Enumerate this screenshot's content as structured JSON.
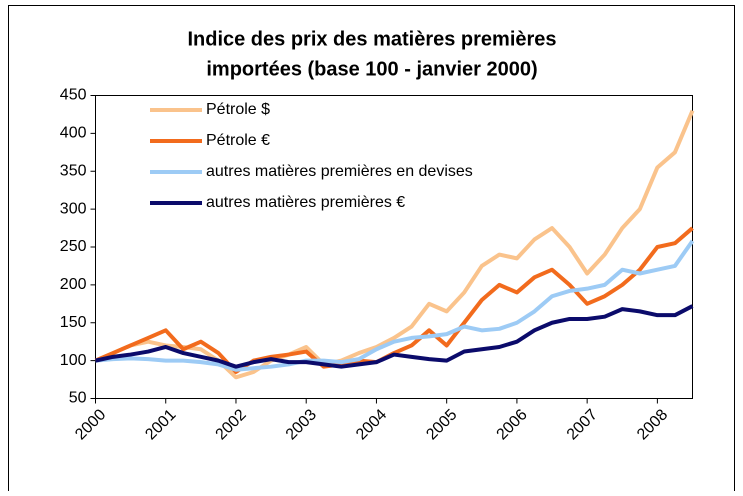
{
  "chart_data": {
    "type": "line",
    "title": [
      "Indice des prix des matières premières",
      "importées (base 100 - janvier 2000)"
    ],
    "x": [
      2000,
      2000.25,
      2000.5,
      2000.75,
      2001,
      2001.25,
      2001.5,
      2001.75,
      2002,
      2002.25,
      2002.5,
      2002.75,
      2003,
      2003.25,
      2003.5,
      2003.75,
      2004,
      2004.25,
      2004.5,
      2004.75,
      2005,
      2005.25,
      2005.5,
      2005.75,
      2006,
      2006.25,
      2006.5,
      2006.75,
      2007,
      2007.25,
      2007.5,
      2007.75,
      2008,
      2008.25,
      2008.5
    ],
    "series": [
      {
        "name": "Pétrole $",
        "color": "#fac38c",
        "values": [
          100,
          110,
          120,
          125,
          120,
          118,
          115,
          100,
          78,
          85,
          100,
          108,
          118,
          95,
          100,
          110,
          118,
          130,
          145,
          175,
          165,
          190,
          225,
          240,
          235,
          260,
          275,
          250,
          215,
          240,
          275,
          300,
          355,
          375,
          430
        ]
      },
      {
        "name": "Pétrole €",
        "color": "#f26b1d",
        "values": [
          100,
          110,
          120,
          130,
          140,
          115,
          125,
          110,
          85,
          100,
          105,
          108,
          112,
          92,
          95,
          100,
          98,
          110,
          120,
          140,
          120,
          150,
          180,
          200,
          190,
          210,
          220,
          200,
          175,
          185,
          200,
          220,
          250,
          255,
          275
        ]
      },
      {
        "name": "autres matières premières en devises",
        "color": "#9dcbf5",
        "values": [
          100,
          102,
          103,
          102,
          100,
          100,
          98,
          95,
          88,
          90,
          92,
          95,
          100,
          100,
          98,
          102,
          115,
          125,
          130,
          132,
          135,
          145,
          140,
          142,
          150,
          165,
          185,
          192,
          195,
          200,
          220,
          215,
          220,
          225,
          258
        ]
      },
      {
        "name": "autres matières premières €",
        "color": "#0b0b6b",
        "values": [
          100,
          105,
          108,
          112,
          118,
          110,
          105,
          100,
          92,
          98,
          102,
          98,
          98,
          95,
          92,
          95,
          98,
          108,
          105,
          102,
          100,
          112,
          115,
          118,
          125,
          140,
          150,
          155,
          155,
          158,
          168,
          165,
          160,
          160,
          172
        ]
      }
    ],
    "xlim": [
      2000,
      2008.5
    ],
    "xticks": [
      2000,
      2001,
      2002,
      2003,
      2004,
      2005,
      2006,
      2007,
      2008
    ],
    "ylim": [
      50,
      450
    ],
    "yticks": [
      50,
      100,
      150,
      200,
      250,
      300,
      350,
      400,
      450
    ],
    "grid": false,
    "legend": "upper left"
  }
}
